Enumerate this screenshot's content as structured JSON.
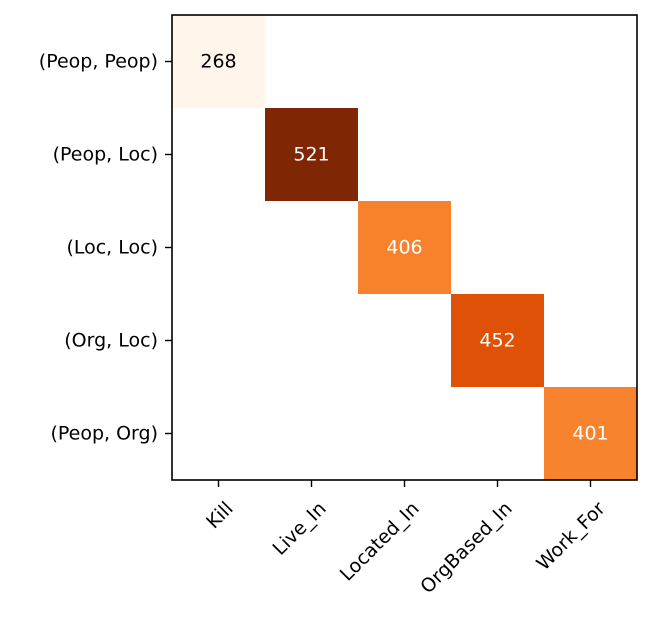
{
  "chart_data": {
    "type": "heatmap",
    "title": "",
    "xlabel": "",
    "ylabel": "",
    "colormap": "Oranges",
    "x_categories": [
      "Kill",
      "Live_In",
      "Located_In",
      "OrgBased_In",
      "Work_For"
    ],
    "y_categories": [
      "(Peop, Peop)",
      "(Peop, Loc)",
      "(Loc, Loc)",
      "(Org, Loc)",
      "(Peop, Org)"
    ],
    "matrix": [
      [
        268,
        0,
        0,
        0,
        0
      ],
      [
        0,
        521,
        0,
        0,
        0
      ],
      [
        0,
        0,
        406,
        0,
        0
      ],
      [
        0,
        0,
        0,
        452,
        0
      ],
      [
        0,
        0,
        0,
        0,
        401
      ]
    ],
    "value_range": [
      268,
      521
    ],
    "empty_cell_color": "#ffffff",
    "cell_colors": {
      "268": "#fff5eb",
      "401": "#f8832f",
      "406": "#f8812c",
      "452": "#df5106",
      "521": "#7f2704"
    },
    "text_colors": {
      "dark_cell": "#ffffff",
      "light_cell": "#000000"
    },
    "grid": false,
    "legend": "none"
  }
}
